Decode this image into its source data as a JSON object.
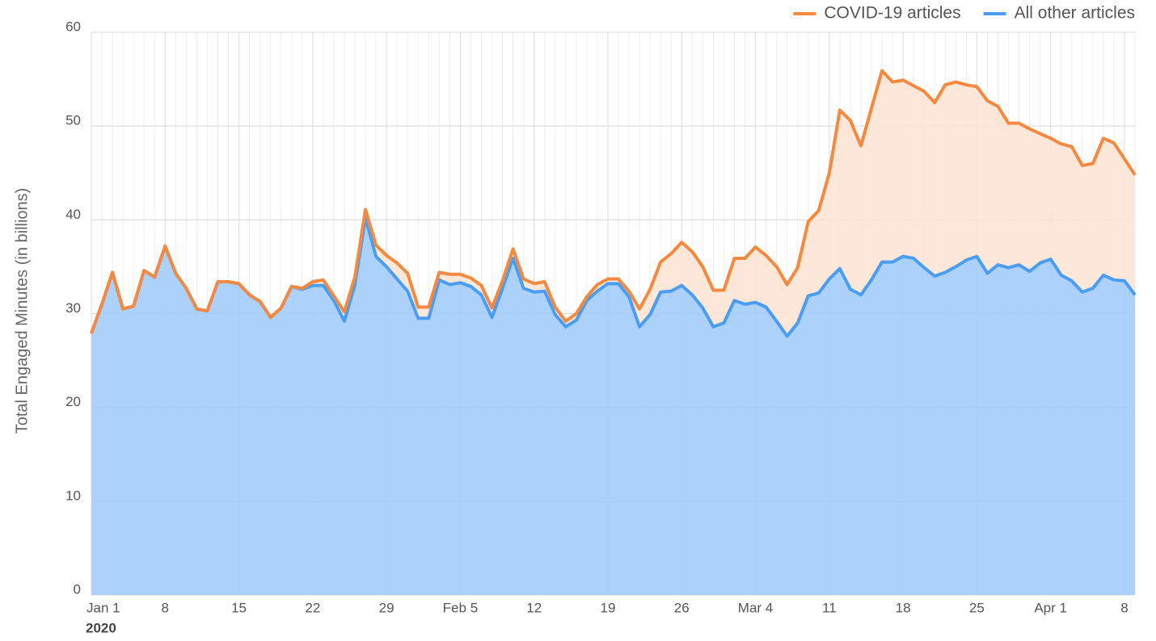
{
  "chart_data": {
    "type": "stacked_area",
    "y_label": "Total Engaged Minutes (in billions)",
    "x_year": "2020",
    "categories": [
      "Jan 1",
      null,
      null,
      null,
      null,
      null,
      null,
      "8",
      null,
      null,
      null,
      null,
      null,
      null,
      "15",
      null,
      null,
      null,
      null,
      null,
      null,
      "22",
      null,
      null,
      null,
      null,
      null,
      null,
      "29",
      null,
      null,
      null,
      null,
      null,
      null,
      "Feb 5",
      null,
      null,
      null,
      null,
      null,
      null,
      "12",
      null,
      null,
      null,
      null,
      null,
      null,
      "19",
      null,
      null,
      null,
      null,
      null,
      null,
      "26",
      null,
      null,
      null,
      null,
      null,
      null,
      "Mar 4",
      null,
      null,
      null,
      null,
      null,
      null,
      "11",
      null,
      null,
      null,
      null,
      null,
      null,
      "18",
      null,
      null,
      null,
      null,
      null,
      null,
      "25",
      null,
      null,
      null,
      null,
      null,
      null,
      "Apr 1",
      null,
      null,
      null,
      null,
      null,
      null,
      "8",
      null
    ],
    "series": [
      {
        "name": "COVID-19 articles",
        "color": "#f5893f",
        "fill": "#fde4d4",
        "values": [
          0,
          0,
          0,
          0,
          0,
          0,
          0,
          0,
          0,
          0,
          0,
          0,
          0,
          0,
          0,
          0,
          0,
          0,
          0,
          0,
          0.1,
          0.4,
          0.6,
          0.5,
          1.0,
          0.8,
          0.9,
          1.2,
          1.2,
          1.7,
          1.9,
          1.2,
          1.2,
          0.8,
          1.1,
          0.9,
          0.9,
          1.0,
          1.0,
          0.8,
          1.0,
          1.0,
          0.9,
          1.0,
          0.8,
          0.6,
          0.7,
          0.4,
          0.7,
          0.5,
          0.5,
          0.6,
          1.9,
          2.7,
          3.2,
          4.0,
          4.6,
          4.6,
          4.4,
          3.9,
          3.5,
          4.5,
          4.9,
          5.9,
          5.5,
          5.8,
          5.5,
          5.9,
          7.9,
          8.8,
          11.3,
          16.9,
          18.0,
          15.9,
          18.3,
          20.4,
          19.2,
          18.8,
          18.4,
          18.8,
          18.5,
          20.0,
          19.7,
          18.7,
          18.1,
          18.4,
          16.9,
          15.4,
          15.1,
          15.2,
          13.8,
          12.9,
          14.0,
          14.3,
          13.5,
          13.3,
          14.6,
          14.6,
          13.0,
          12.8
        ]
      },
      {
        "name": "All other articles",
        "color": "#4a9df0",
        "fill": "#a3cdfc",
        "values": [
          27.9,
          31.0,
          34.4,
          30.5,
          30.8,
          34.6,
          33.9,
          37.2,
          34.3,
          32.7,
          30.5,
          30.3,
          33.4,
          33.4,
          33.2,
          32.0,
          31.3,
          29.6,
          30.6,
          32.9,
          32.6,
          33.0,
          33.0,
          31.4,
          29.2,
          33.1,
          40.2,
          36.1,
          35.0,
          33.7,
          32.4,
          29.5,
          29.5,
          33.6,
          33.1,
          33.3,
          32.9,
          32.0,
          29.6,
          32.7,
          35.9,
          32.7,
          32.3,
          32.4,
          29.9,
          28.6,
          29.3,
          31.4,
          32.4,
          33.2,
          33.2,
          31.8,
          28.6,
          29.9,
          32.3,
          32.4,
          33.0,
          32.0,
          30.6,
          28.6,
          29.0,
          31.4,
          31.0,
          31.2,
          30.7,
          29.2,
          27.6,
          29.0,
          31.9,
          32.2,
          33.7,
          34.8,
          32.6,
          32.0,
          33.6,
          35.5,
          35.5,
          36.1,
          35.9,
          34.9,
          34.0,
          34.4,
          35.0,
          35.7,
          36.1,
          34.3,
          35.2,
          34.9,
          35.2,
          34.5,
          35.4,
          35.8,
          34.1,
          33.5,
          32.3,
          32.7,
          34.1,
          33.6,
          33.5,
          32.0
        ]
      }
    ],
    "ylim": [
      0,
      60
    ],
    "yticks": [
      0,
      10,
      20,
      30,
      40,
      50,
      60
    ],
    "grid": true,
    "legend": "top-right"
  }
}
